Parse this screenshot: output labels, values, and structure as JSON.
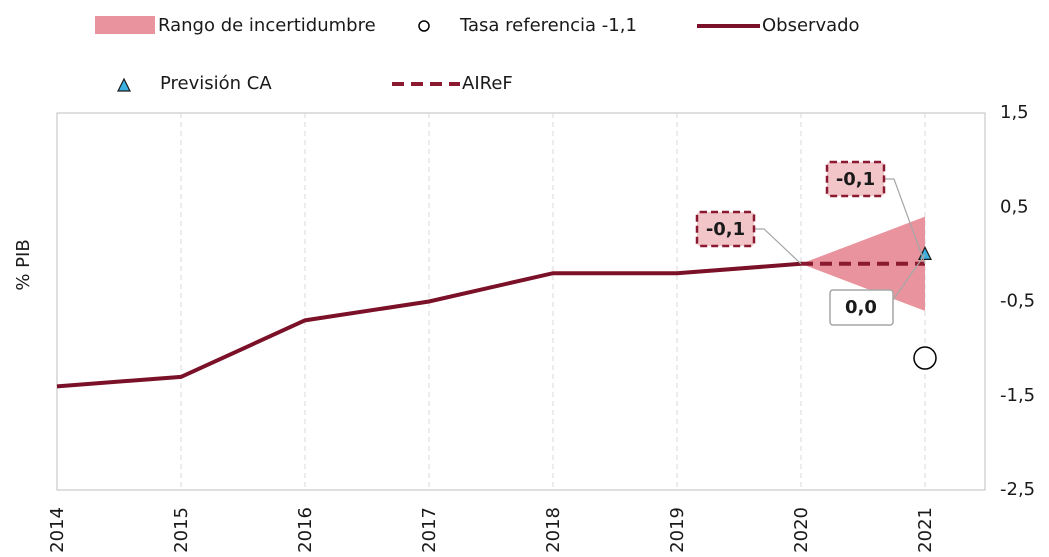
{
  "chart_data": {
    "type": "line",
    "y_label": "% PIB",
    "categories": [
      "2014",
      "2015",
      "2016",
      "2017",
      "2018",
      "2019",
      "2020",
      "2021"
    ],
    "ylim": [
      -2.5,
      1.5
    ],
    "yticks": [
      {
        "value": 1.5,
        "label": "1,5"
      },
      {
        "value": 0.5,
        "label": "0,5"
      },
      {
        "value": -0.5,
        "label": "-0,5"
      },
      {
        "value": -1.5,
        "label": "-1,5"
      },
      {
        "value": -2.5,
        "label": "-2,5"
      }
    ],
    "grid": true,
    "band": {
      "name": "Rango de incertidumbre",
      "color": "#e8939d",
      "low": [
        null,
        null,
        null,
        null,
        null,
        null,
        -0.1,
        -0.6
      ],
      "high": [
        null,
        null,
        null,
        null,
        null,
        null,
        -0.1,
        0.4
      ]
    },
    "series": [
      {
        "name": "Observado",
        "color": "#7b1128",
        "style": "solid",
        "values": [
          -1.4,
          -1.3,
          -0.7,
          -0.5,
          -0.2,
          -0.2,
          -0.1,
          null
        ],
        "value_labels": [
          null,
          null,
          null,
          null,
          null,
          null,
          "-0,1",
          null
        ]
      },
      {
        "name": "AIReF",
        "color": "#8b1a30",
        "style": "dashed",
        "values": [
          null,
          null,
          null,
          null,
          null,
          null,
          -0.1,
          -0.1
        ],
        "value_labels": [
          null,
          null,
          null,
          null,
          null,
          null,
          null,
          "-0,1"
        ]
      }
    ],
    "points": [
      {
        "name": "Tasa referencia -1,1",
        "marker": "circle",
        "color": "#ffffff",
        "category": 7,
        "value": -1.1
      },
      {
        "name": "Previsión CA",
        "marker": "triangle",
        "color": "#3bb0e0",
        "category": 7,
        "value": 0.0,
        "value_label": "0,0"
      }
    ]
  }
}
